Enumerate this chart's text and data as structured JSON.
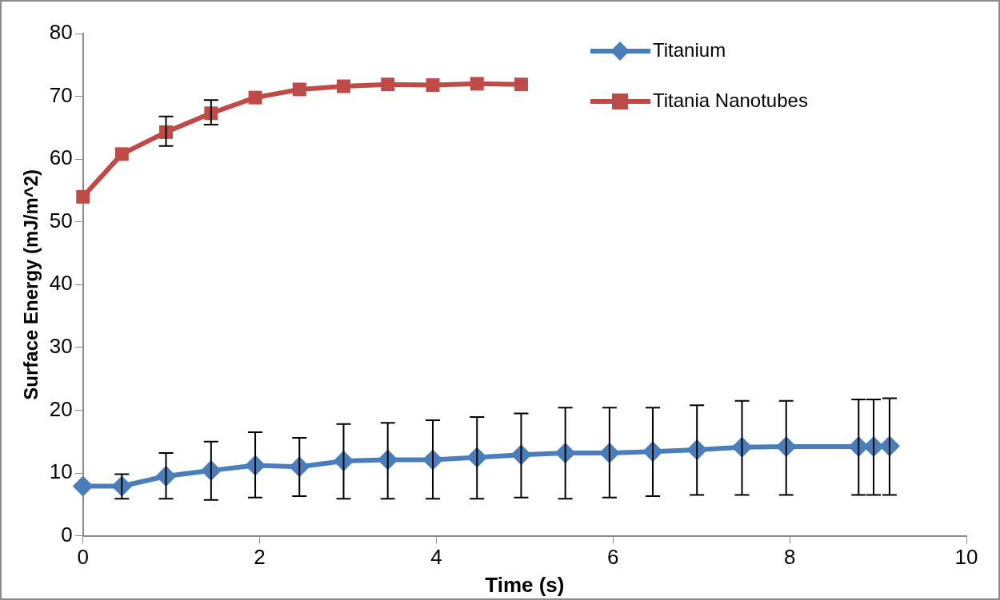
{
  "chart_data": {
    "type": "line",
    "xlabel": "Time (s)",
    "ylabel": "Surface Energy (mJ/m^2)",
    "xlim": [
      0,
      10
    ],
    "xticks": [
      0,
      2,
      4,
      6,
      8,
      10
    ],
    "ylim": [
      0,
      80
    ],
    "yticks": [
      0,
      10,
      20,
      30,
      40,
      50,
      60,
      70,
      80
    ],
    "grid": false,
    "legend": "top right",
    "line_style": "solid",
    "series": [
      {
        "name": "Titanium",
        "color": "#4a7ebb",
        "marker": "diamond",
        "x": [
          0,
          0.44,
          0.94,
          1.45,
          1.95,
          2.45,
          2.95,
          3.45,
          3.96,
          4.46,
          4.96,
          5.46,
          5.96,
          6.45,
          6.95,
          7.46,
          7.96,
          8.78,
          8.95,
          9.13
        ],
        "values": [
          7.9,
          7.9,
          9.5,
          10.4,
          11.2,
          11.0,
          11.9,
          12.1,
          12.1,
          12.5,
          12.9,
          13.2,
          13.2,
          13.4,
          13.7,
          14.1,
          14.2,
          14.2,
          14.2,
          14.3
        ],
        "errors": [
          null,
          [
            5.9,
            9.8
          ],
          [
            5.9,
            13.2
          ],
          [
            5.7,
            15.0
          ],
          [
            6.1,
            16.5
          ],
          [
            6.3,
            15.6
          ],
          [
            5.9,
            17.8
          ],
          [
            5.9,
            18.0
          ],
          [
            5.9,
            18.4
          ],
          [
            5.9,
            18.9
          ],
          [
            6.1,
            19.5
          ],
          [
            5.9,
            20.4
          ],
          [
            6.1,
            20.4
          ],
          [
            6.3,
            20.4
          ],
          [
            6.5,
            20.8
          ],
          [
            6.5,
            21.5
          ],
          [
            6.5,
            21.5
          ],
          [
            6.5,
            21.7
          ],
          [
            6.5,
            21.7
          ],
          [
            6.5,
            21.9
          ]
        ]
      },
      {
        "name": "Titania Nanotubes",
        "color": "#be4b48",
        "marker": "square",
        "x": [
          0,
          0.44,
          0.94,
          1.45,
          1.95,
          2.45,
          2.95,
          3.45,
          3.96,
          4.46,
          4.96
        ],
        "values": [
          54.0,
          60.8,
          64.3,
          67.3,
          69.8,
          71.1,
          71.6,
          71.9,
          71.8,
          72.0,
          71.9
        ],
        "errors": [
          null,
          null,
          [
            62.1,
            66.8
          ],
          [
            65.5,
            69.4
          ],
          null,
          null,
          null,
          null,
          null,
          null,
          null
        ]
      }
    ]
  }
}
